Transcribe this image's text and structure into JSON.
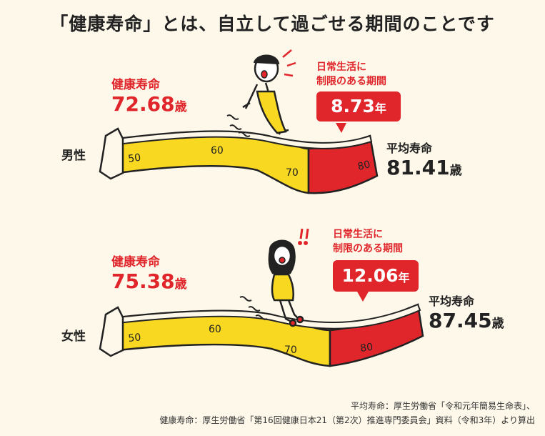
{
  "title": "「健康寿命」とは、自立して過ごせる期間のことです",
  "male": {
    "gender": "男性",
    "healthy_label": "健康寿命",
    "healthy_value": "72.68",
    "healthy_unit": "歳",
    "callout_line1": "日常生活に",
    "callout_line2": "制限のある期間",
    "limited_value": "8.73",
    "limited_unit": "年",
    "life_label": "平均寿命",
    "life_value": "81.41",
    "life_unit": "歳",
    "ticks": [
      "50",
      "60",
      "70",
      "80"
    ]
  },
  "female": {
    "gender": "女性",
    "healthy_label": "健康寿命",
    "healthy_value": "75.38",
    "healthy_unit": "歳",
    "callout_line1": "日常生活に",
    "callout_line2": "制限のある期間",
    "limited_value": "12.06",
    "limited_unit": "年",
    "life_label": "平均寿命",
    "life_value": "87.45",
    "life_unit": "歳",
    "ticks": [
      "50",
      "60",
      "70",
      "80"
    ]
  },
  "source_line1": "平均寿命：厚生労働省「令和元年簡易生命表」、",
  "source_line2": "健康寿命：厚生労働省「第16回健康日本21（第2次）推進専門委員会」資料（令和3年）より算出",
  "colors": {
    "healthy": "#f8d821",
    "limited": "#e0262b",
    "outline": "#222222",
    "background": "#fdf8ea"
  }
}
